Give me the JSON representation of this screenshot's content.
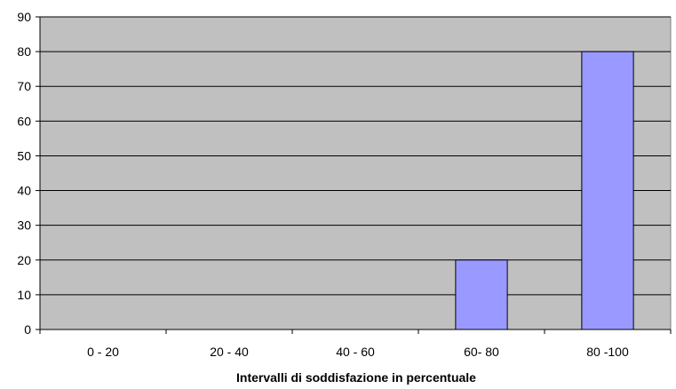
{
  "chart_data": {
    "type": "bar",
    "title": "",
    "xlabel": "Intervalli di soddisfazione in percentuale",
    "ylabel": "",
    "categories": [
      "0 - 20",
      "20 - 40",
      "40 - 60",
      "60- 80",
      "80 -100"
    ],
    "values": [
      0,
      0,
      0,
      20,
      80
    ],
    "ylim": [
      0,
      90
    ],
    "yticks": [
      "0",
      "10",
      "20",
      "30",
      "40",
      "50",
      "60",
      "70",
      "80",
      "90"
    ],
    "grid": true,
    "legend": "none",
    "colors": {
      "plot_background": "#c0c0c0",
      "bar_fill": "#9999ff",
      "bar_stroke": "#000000",
      "gridline": "#000000"
    }
  }
}
